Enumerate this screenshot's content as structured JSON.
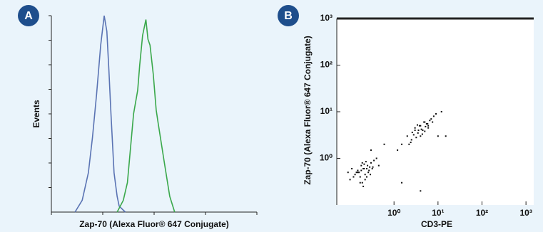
{
  "chart_data": [
    {
      "type": "line",
      "panel_label": "A",
      "xlabel": "Zap-70 (Alexa Fluor® 647 Conjugate)",
      "ylabel": "Events",
      "xlim": [
        0,
        100
      ],
      "ylim": [
        0,
        100
      ],
      "series": [
        {
          "color": "#5a73b3",
          "x": [
            11.5,
            15,
            18,
            20,
            22,
            24,
            25.7,
            27,
            28,
            29,
            30.5,
            32,
            33,
            36
          ],
          "values": [
            0,
            6,
            20,
            38,
            60,
            85,
            100,
            92,
            72,
            50,
            20,
            8,
            3,
            0
          ]
        },
        {
          "color": "#3aa84b",
          "x": [
            32,
            35,
            37,
            40,
            42,
            43,
            44.4,
            46,
            47,
            48,
            49.6,
            51,
            52,
            55,
            57.6,
            60
          ],
          "values": [
            0,
            6,
            15,
            50,
            62,
            75,
            90,
            98,
            88,
            85,
            70,
            52,
            45,
            25,
            8,
            0
          ]
        }
      ]
    },
    {
      "type": "scatter",
      "panel_label": "B",
      "xlabel": "CD3-PE",
      "ylabel": "Zap-70 (Alexa Fluor® 647 Conjugate)",
      "log_scale": true,
      "color": "#111111",
      "xlim": [
        0.05,
        1500
      ],
      "ylim": [
        0.1,
        1000
      ],
      "xticks": [
        {
          "value": 1,
          "label": "10⁰"
        },
        {
          "value": 10,
          "label": "10¹"
        },
        {
          "value": 100,
          "label": "10²"
        },
        {
          "value": 1000,
          "label": "10³"
        }
      ],
      "yticks": [
        {
          "value": 1,
          "label": "10⁰"
        },
        {
          "value": 10,
          "label": "10¹"
        },
        {
          "value": 100,
          "label": "10²"
        },
        {
          "value": 1000,
          "label": "10³"
        }
      ],
      "x": [
        0.15,
        0.2,
        0.12,
        0.25,
        0.18,
        0.3,
        0.22,
        0.1,
        0.28,
        0.16,
        0.35,
        0.19,
        0.24,
        0.13,
        0.21,
        0.27,
        0.17,
        0.32,
        0.14,
        0.23,
        0.4,
        0.2,
        0.26,
        0.11,
        0.29,
        0.18,
        0.22,
        0.15,
        0.33,
        0.24,
        0.19,
        0.09,
        0.45,
        0.21,
        0.17,
        2,
        3,
        4,
        2.5,
        5,
        3.5,
        6,
        4.5,
        2.2,
        3,
        7,
        5.5,
        4,
        2.8,
        6.5,
        3.2,
        8,
        4.2,
        1.5,
        5,
        3.8,
        9,
        2.6,
        4.8,
        6,
        3.4,
        1.2,
        5.2,
        7.5,
        4.4,
        12,
        2.4,
        3.6,
        5.8,
        10,
        0.6,
        1.5,
        15,
        0.3,
        4
      ],
      "values": [
        0.5,
        0.6,
        0.4,
        0.7,
        0.55,
        0.8,
        0.45,
        0.35,
        0.65,
        0.5,
        0.9,
        0.3,
        0.6,
        0.45,
        0.75,
        0.55,
        0.4,
        0.6,
        0.5,
        0.85,
        1.0,
        0.25,
        0.5,
        0.6,
        0.45,
        0.7,
        0.35,
        0.55,
        0.65,
        0.4,
        0.8,
        0.5,
        0.7,
        0.6,
        0.3,
        3,
        4,
        5,
        2.5,
        6,
        3.5,
        5,
        4,
        2,
        4.5,
        7,
        5.5,
        3,
        3.2,
        6.5,
        2.8,
        8,
        4.2,
        2,
        3.8,
        5,
        9,
        3.6,
        6,
        4.5,
        5.2,
        1.5,
        4.8,
        6,
        3.3,
        10,
        2.2,
        4,
        5.5,
        3,
        2,
        0.3,
        3,
        1.5,
        0.2
      ]
    }
  ]
}
